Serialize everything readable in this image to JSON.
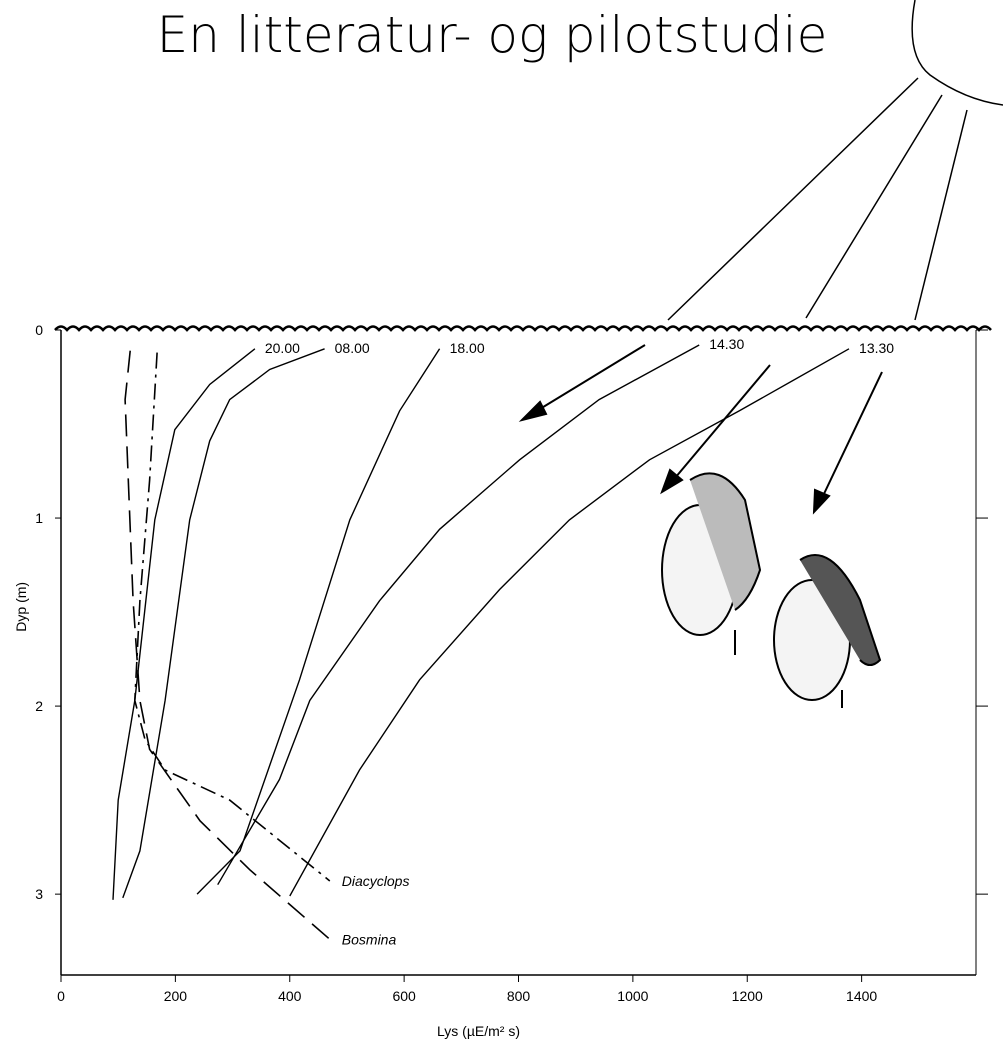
{
  "chart_data": {
    "type": "line",
    "title": "En litteratur- og pilotstudie",
    "xlabel": "Lys (µE/m² s)",
    "ylabel": "Dyp (m)",
    "xlim": [
      0,
      1600
    ],
    "xticks": [
      0,
      200,
      400,
      600,
      800,
      1000,
      1200,
      1400
    ],
    "ylim": [
      0,
      3.43
    ],
    "yticks": [
      0,
      1,
      2,
      3
    ],
    "y_inverted": true,
    "series": [
      {
        "name": "20.00",
        "color": "#000000",
        "style": "solid",
        "x": [
          339,
          260,
          199,
          164,
          129,
          100,
          91
        ],
        "y": [
          0.1,
          0.29,
          0.53,
          1.01,
          1.97,
          2.5,
          3.03
        ]
      },
      {
        "name": "08.00",
        "color": "#000000",
        "style": "solid",
        "x": [
          461,
          365,
          295,
          260,
          225,
          182,
          138,
          108
        ],
        "y": [
          0.1,
          0.21,
          0.37,
          0.59,
          1.01,
          1.97,
          2.77,
          3.02
        ]
      },
      {
        "name": "18.00",
        "color": "#000000",
        "style": "solid",
        "x": [
          662,
          592,
          505,
          417,
          313,
          238
        ],
        "y": [
          0.1,
          0.43,
          1.01,
          1.86,
          2.77,
          3.0
        ]
      },
      {
        "name": "14.30",
        "color": "#000000",
        "style": "solid",
        "x": [
          1116,
          941,
          802,
          662,
          557,
          435,
          382,
          274
        ],
        "y": [
          0.08,
          0.37,
          0.69,
          1.06,
          1.44,
          1.97,
          2.39,
          2.95
        ]
      },
      {
        "name": "13.30",
        "color": "#000000",
        "style": "solid",
        "x": [
          1378,
          1186,
          1029,
          889,
          767,
          627,
          522,
          400
        ],
        "y": [
          0.1,
          0.43,
          0.69,
          1.01,
          1.38,
          1.86,
          2.34,
          3.01
        ]
      },
      {
        "name": "Diacyclops",
        "color": "#000000",
        "style": "dashdot",
        "x": [
          168,
          155,
          138,
          129,
          147,
          182,
          295,
          470
        ],
        "y": [
          0.12,
          0.8,
          1.44,
          1.97,
          2.18,
          2.34,
          2.5,
          2.93
        ]
      },
      {
        "name": "Bosmina",
        "color": "#000000",
        "style": "dashed",
        "x": [
          121,
          112,
          126,
          138,
          155,
          243,
          330,
          470
        ],
        "y": [
          0.11,
          0.37,
          1.44,
          1.97,
          2.23,
          2.61,
          2.87,
          3.24
        ]
      }
    ]
  }
}
